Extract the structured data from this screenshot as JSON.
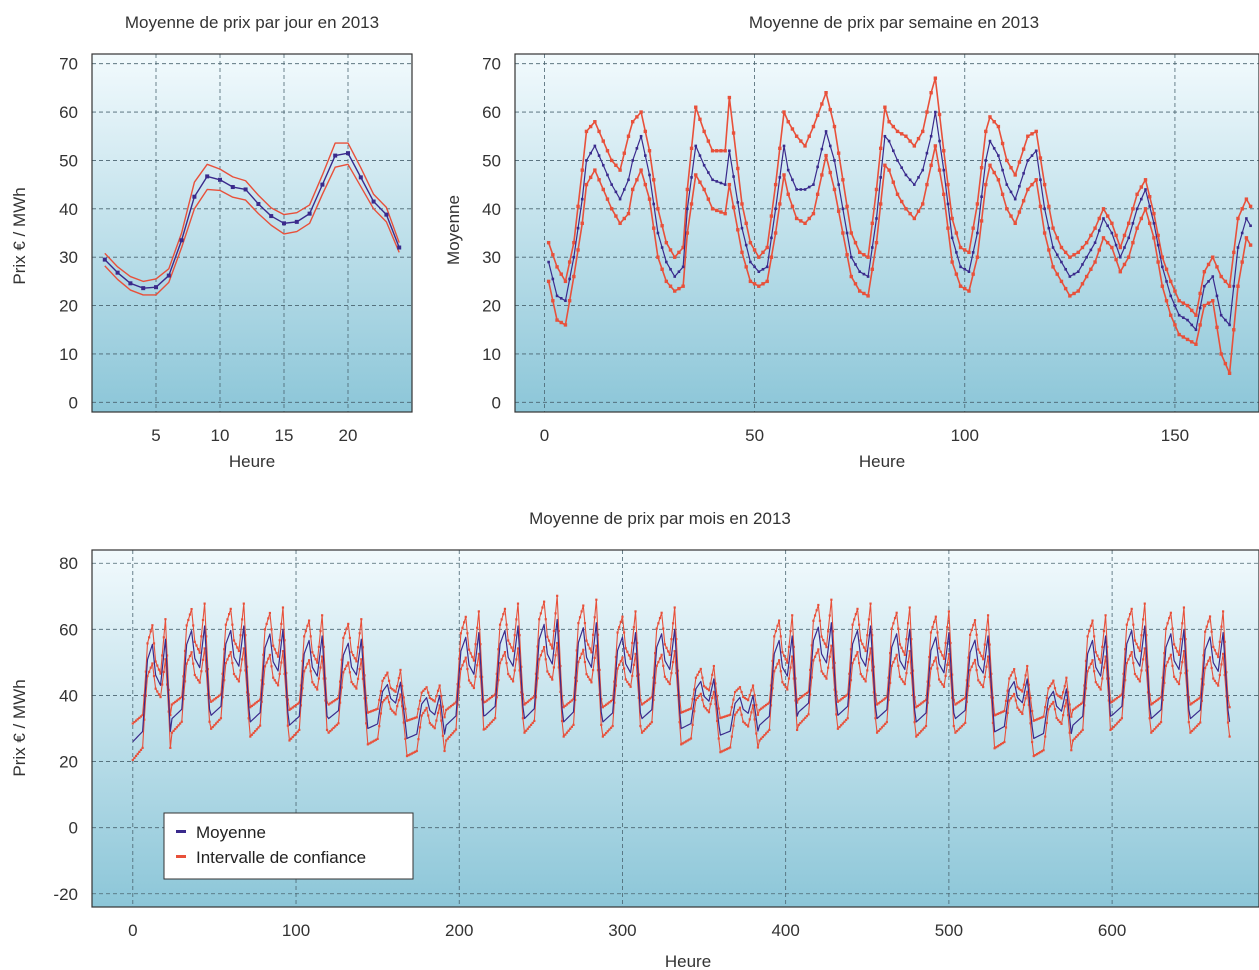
{
  "chart_data": [
    {
      "id": "daily",
      "type": "line",
      "title": "Moyenne de prix par jour en 2013",
      "xlabel": "Heure",
      "ylabel": "Prix € / MWh",
      "xlim": [
        0,
        25
      ],
      "ylim": [
        -2,
        72
      ],
      "xticks": [
        5,
        10,
        15,
        20
      ],
      "yticks": [
        0,
        10,
        20,
        30,
        40,
        50,
        60,
        70
      ],
      "grid": true,
      "colors": {
        "mean": "#3a2a8c",
        "ci": "#e8503a"
      },
      "x": [
        1,
        2,
        3,
        4,
        5,
        6,
        7,
        8,
        9,
        10,
        11,
        12,
        13,
        14,
        15,
        16,
        17,
        18,
        19,
        20,
        21,
        22,
        23,
        24
      ],
      "series": [
        {
          "role": "mean",
          "values": [
            29.5,
            26.8,
            24.6,
            23.6,
            23.8,
            26.2,
            33.5,
            42.5,
            46.7,
            46.0,
            44.5,
            44.0,
            41.0,
            38.5,
            37.0,
            37.3,
            39.0,
            45.0,
            51.0,
            51.5,
            46.5,
            41.5,
            38.8,
            32.0
          ]
        },
        {
          "role": "ci-upper",
          "values": [
            30.8,
            28.0,
            26.0,
            25.0,
            25.5,
            27.6,
            35.0,
            45.5,
            49.2,
            48.2,
            46.6,
            45.8,
            42.8,
            40.2,
            38.8,
            39.2,
            40.8,
            47.0,
            53.6,
            53.6,
            48.5,
            43.0,
            40.3,
            33.0
          ]
        },
        {
          "role": "ci-lower",
          "values": [
            28.2,
            25.4,
            23.2,
            22.2,
            22.2,
            24.8,
            32.0,
            40.0,
            44.0,
            43.8,
            42.4,
            41.8,
            39.0,
            36.6,
            34.8,
            35.3,
            37.0,
            43.0,
            48.6,
            49.2,
            44.6,
            40.0,
            37.3,
            31.0
          ]
        }
      ]
    },
    {
      "id": "weekly",
      "type": "line",
      "title": "Moyenne de prix par semaine en 2013",
      "xlabel": "Heure",
      "ylabel": "Moyenne",
      "xlim": [
        -7,
        170
      ],
      "ylim": [
        -2,
        72
      ],
      "xticks": [
        0,
        50,
        100,
        150
      ],
      "yticks": [
        0,
        10,
        20,
        30,
        40,
        50,
        60,
        70
      ],
      "grid": true,
      "colors": {
        "mean": "#3a2a8c",
        "ci": "#e8503a"
      },
      "x_key": [
        1,
        3,
        5,
        7,
        9,
        10,
        12,
        14,
        16,
        18,
        20,
        21,
        23,
        25,
        27,
        29,
        31,
        33,
        34,
        36,
        38,
        40,
        43,
        44,
        47,
        49,
        51,
        53,
        55,
        57,
        58,
        60,
        62,
        64,
        67,
        69,
        71,
        73,
        75,
        77,
        79,
        81,
        82,
        84,
        86,
        88,
        90,
        92,
        93,
        95,
        97,
        99,
        101,
        103,
        105,
        106,
        108,
        110,
        112,
        115,
        117,
        119,
        121,
        123,
        125,
        127,
        129,
        131,
        133,
        135,
        137,
        139,
        141,
        143,
        145,
        147,
        149,
        151,
        153,
        155,
        157,
        159,
        161,
        163,
        165,
        167,
        169
      ],
      "series": [
        {
          "role": "mean",
          "key_values": [
            29,
            22,
            21,
            30,
            42,
            50,
            53,
            49,
            45,
            42,
            46,
            50,
            55,
            47,
            35,
            29,
            26,
            28,
            40,
            53,
            49,
            46,
            45,
            52,
            36,
            29,
            27,
            28,
            40,
            53,
            48,
            44,
            44,
            45,
            56,
            50,
            40,
            30,
            27,
            26,
            38,
            55,
            54,
            50,
            47,
            45,
            48,
            55,
            60,
            48,
            34,
            28,
            27,
            35,
            50,
            54,
            51,
            45,
            42,
            50,
            52,
            40,
            32,
            29,
            26,
            27,
            30,
            33,
            38,
            35,
            30,
            34,
            40,
            44,
            37,
            28,
            22,
            18,
            17,
            15,
            24,
            26,
            18,
            16,
            32,
            38,
            35
          ]
        },
        {
          "role": "ci-upper",
          "key_values": [
            33,
            28,
            25,
            33,
            48,
            56,
            58,
            54,
            50,
            48,
            55,
            58,
            60,
            52,
            40,
            33,
            30,
            32,
            44,
            61,
            56,
            52,
            52,
            63,
            41,
            33,
            30,
            32,
            45,
            60,
            58,
            55,
            53,
            57,
            64,
            57,
            46,
            35,
            31,
            30,
            44,
            61,
            58,
            56,
            55,
            53,
            56,
            64,
            67,
            52,
            38,
            32,
            31,
            41,
            56,
            59,
            57,
            50,
            47,
            55,
            56,
            45,
            36,
            32,
            30,
            31,
            33,
            36,
            40,
            37,
            32,
            37,
            43,
            46,
            39,
            30,
            25,
            21,
            20,
            18,
            27,
            30,
            26,
            24,
            38,
            42,
            39
          ]
        },
        {
          "role": "ci-lower",
          "key_values": [
            25,
            17,
            16,
            26,
            37,
            45,
            48,
            44,
            40,
            37,
            39,
            44,
            48,
            42,
            30,
            25,
            23,
            24,
            35,
            47,
            44,
            40,
            39,
            45,
            31,
            25,
            24,
            25,
            35,
            47,
            43,
            38,
            37,
            39,
            51,
            44,
            35,
            26,
            23,
            22,
            33,
            49,
            48,
            43,
            40,
            38,
            41,
            49,
            53,
            43,
            29,
            24,
            23,
            30,
            45,
            49,
            46,
            40,
            37,
            44,
            46,
            35,
            28,
            25,
            22,
            23,
            26,
            29,
            34,
            32,
            27,
            30,
            36,
            40,
            34,
            24,
            18,
            14,
            13,
            12,
            20,
            21,
            10,
            6,
            24,
            34,
            31
          ]
        }
      ]
    },
    {
      "id": "monthly",
      "type": "line",
      "title": "Moyenne de prix par mois en 2013",
      "xlabel": "Heure",
      "ylabel": "Prix € / MWh",
      "xlim": [
        -25,
        690
      ],
      "ylim": [
        -24,
        84
      ],
      "xticks": [
        0,
        100,
        200,
        300,
        400,
        500,
        600
      ],
      "yticks": [
        -20,
        0,
        20,
        40,
        60,
        80
      ],
      "grid": true,
      "colors": {
        "mean": "#3a2a8c",
        "ci": "#e8503a"
      },
      "legend": {
        "placement": "bottom-left",
        "entries": [
          "Moyenne",
          "Intervalle de confiance"
        ]
      },
      "x_range": [
        0,
        672
      ],
      "daily_peak_mean": [
        57,
        61,
        61,
        60,
        58,
        57,
        44,
        40,
        59,
        61,
        63,
        62,
        59,
        60,
        45,
        40,
        58,
        62,
        61,
        60,
        59,
        58,
        45,
        42,
        58,
        61,
        60,
        59,
        57,
        58,
        44,
        40,
        57,
        63,
        62,
        60,
        58,
        57,
        43,
        36,
        56,
        62,
        61,
        60,
        58,
        58,
        45,
        40,
        59,
        63,
        61,
        62,
        60,
        58,
        44,
        41,
        58,
        62,
        64,
        61,
        59,
        60,
        45,
        40,
        57,
        60,
        59,
        60,
        61,
        59,
        44,
        38
      ],
      "daily_trough_mean": [
        26,
        33,
        34,
        32,
        31,
        33,
        30,
        27,
        31,
        34,
        33,
        32,
        32,
        33,
        30,
        28,
        31,
        35,
        34,
        33,
        32,
        33,
        29,
        27,
        31,
        34,
        33,
        33,
        32,
        32,
        28,
        26,
        30,
        34,
        33,
        32,
        31,
        30,
        25,
        16,
        32,
        35,
        34,
        33,
        33,
        34,
        30,
        28,
        32,
        35,
        34,
        33,
        33,
        31,
        27,
        20,
        33,
        36,
        35,
        34,
        33,
        34,
        30,
        28,
        32,
        35,
        34,
        33,
        32,
        33,
        28,
        26
      ]
    }
  ]
}
